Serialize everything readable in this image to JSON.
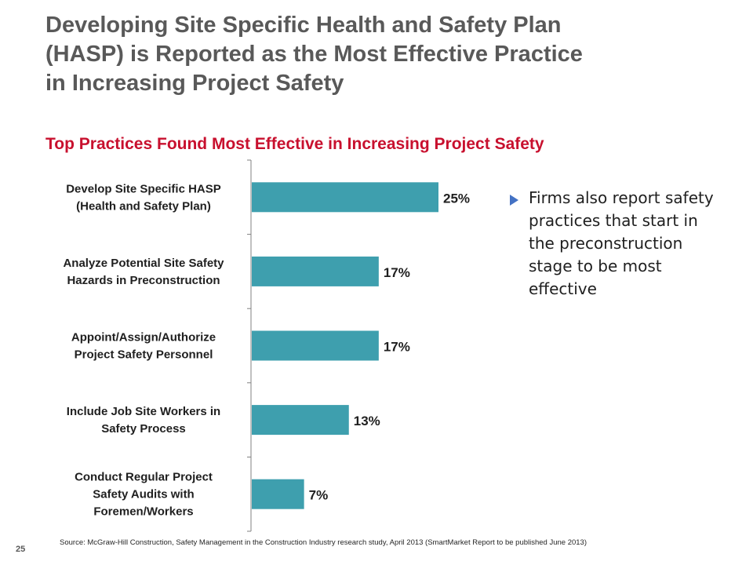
{
  "slide": {
    "title_lines": [
      "Developing Site Specific Health and Safety Plan",
      "(HASP) is Reported as the Most Effective Practice",
      "in Increasing Project Safety"
    ],
    "callout": "Firms also report safety practices that start in the preconstruction stage to be most effective",
    "bullet_icon": "triangle-bullet-icon",
    "page_number": "25",
    "source": "Source: McGraw-Hill Construction, Safety Management in the Construction Industry research study, April 2013 (SmartMarket Report to be published  June 2013)"
  },
  "colors": {
    "title": "#595959",
    "chart_title": "#c8102e",
    "bar": "#3e9fae",
    "axis": "#808080",
    "bullet": "#4472c4"
  },
  "chart_data": {
    "type": "bar",
    "orientation": "horizontal",
    "title": "Top Practices Found Most Effective in Increasing Project Safety",
    "categories": [
      [
        "Develop Site Specific HASP",
        "(Health and Safety Plan)"
      ],
      [
        "Analyze Potential Site Safety",
        "Hazards in Preconstruction"
      ],
      [
        "Appoint/Assign/Authorize",
        "Project Safety Personnel"
      ],
      [
        "Include Job Site Workers in",
        "Safety Process"
      ],
      [
        "Conduct Regular Project",
        "Safety Audits with",
        "Foremen/Workers"
      ]
    ],
    "values": [
      25,
      17,
      17,
      13,
      7
    ],
    "data_labels": [
      "25%",
      "17%",
      "17%",
      "13%",
      "7%"
    ],
    "unit": "%",
    "xlim": [
      0,
      25
    ],
    "grid": false,
    "legend": "none"
  }
}
